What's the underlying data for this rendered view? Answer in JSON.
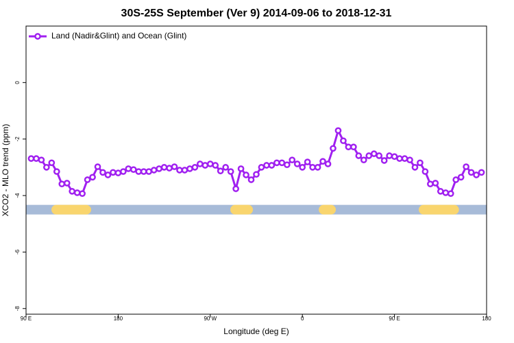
{
  "chart_data": {
    "type": "line",
    "title": "30S-25S September (Ver 9)   2014-09-06 to 2018-12-31",
    "xlabel": "Longitude (deg E)",
    "ylabel": "XCO2 - MLO trend (ppm)",
    "x": [
      95,
      100,
      105,
      110,
      115,
      120,
      125,
      130,
      135,
      140,
      145,
      150,
      155,
      160,
      165,
      170,
      175,
      180,
      185,
      190,
      195,
      200,
      205,
      210,
      215,
      220,
      225,
      230,
      235,
      240,
      245,
      250,
      255,
      260,
      265,
      270,
      275,
      280,
      285,
      290,
      295,
      300,
      305,
      310,
      315,
      320,
      325,
      330,
      335,
      340,
      345,
      350,
      355,
      360,
      365,
      370,
      375,
      380,
      385,
      390,
      395,
      400,
      405,
      410,
      415,
      420,
      425,
      430,
      435,
      440,
      445,
      450,
      455,
      460,
      465,
      470,
      475,
      480,
      485,
      490,
      495,
      500,
      505,
      510,
      515,
      520,
      525,
      530,
      535
    ],
    "series": [
      {
        "name": "Land (Nadir&Glint) and Ocean (Glint)",
        "color": "#a020f0",
        "values": [
          -2.69,
          -2.69,
          -2.74,
          -3.0,
          -2.84,
          -3.15,
          -3.59,
          -3.56,
          -3.85,
          -3.9,
          -3.93,
          -3.44,
          -3.35,
          -2.98,
          -3.18,
          -3.27,
          -3.18,
          -3.2,
          -3.15,
          -3.05,
          -3.08,
          -3.15,
          -3.15,
          -3.15,
          -3.1,
          -3.05,
          -3.0,
          -3.03,
          -2.98,
          -3.1,
          -3.1,
          -3.05,
          -3.0,
          -2.88,
          -2.93,
          -2.88,
          -2.93,
          -3.13,
          -3.0,
          -3.15,
          -3.76,
          -3.05,
          -3.27,
          -3.44,
          -3.25,
          -3.0,
          -2.93,
          -2.93,
          -2.84,
          -2.84,
          -2.91,
          -2.74,
          -2.88,
          -3.0,
          -2.81,
          -3.0,
          -3.0,
          -2.79,
          -2.88,
          -2.33,
          -1.7,
          -2.06,
          -2.28,
          -2.28,
          -2.59,
          -2.74,
          -2.59,
          -2.52,
          -2.59,
          -2.76,
          -2.59,
          -2.62,
          -2.69,
          -2.69,
          -2.74,
          -3.0,
          -2.84,
          -3.15,
          -3.59,
          -3.56,
          -3.85,
          -3.9,
          -3.93,
          -3.44,
          -3.35,
          -2.98,
          -3.18,
          -3.27,
          -3.18
        ]
      }
    ],
    "xlim": [
      90,
      540
    ],
    "ylim": [
      -8.2,
      2
    ],
    "xticks": [
      {
        "value": 90,
        "label": "90 E"
      },
      {
        "value": 180,
        "label": "180"
      },
      {
        "value": 270,
        "label": "90 W"
      },
      {
        "value": 360,
        "label": "0"
      },
      {
        "value": 450,
        "label": "90 E"
      },
      {
        "value": 540,
        "label": "180"
      }
    ],
    "yticks": [
      0,
      -2,
      -4,
      -6,
      -8
    ],
    "legend": "top-left",
    "surface_strip_y": -4.5,
    "ocean_color": "#a7bbd8",
    "land_color": "#f9d56e",
    "land_ranges": [
      [
        114.8,
        153.6
      ],
      [
        289.6,
        311.7
      ],
      [
        376,
        392.7
      ],
      [
        473.7,
        513
      ]
    ]
  }
}
